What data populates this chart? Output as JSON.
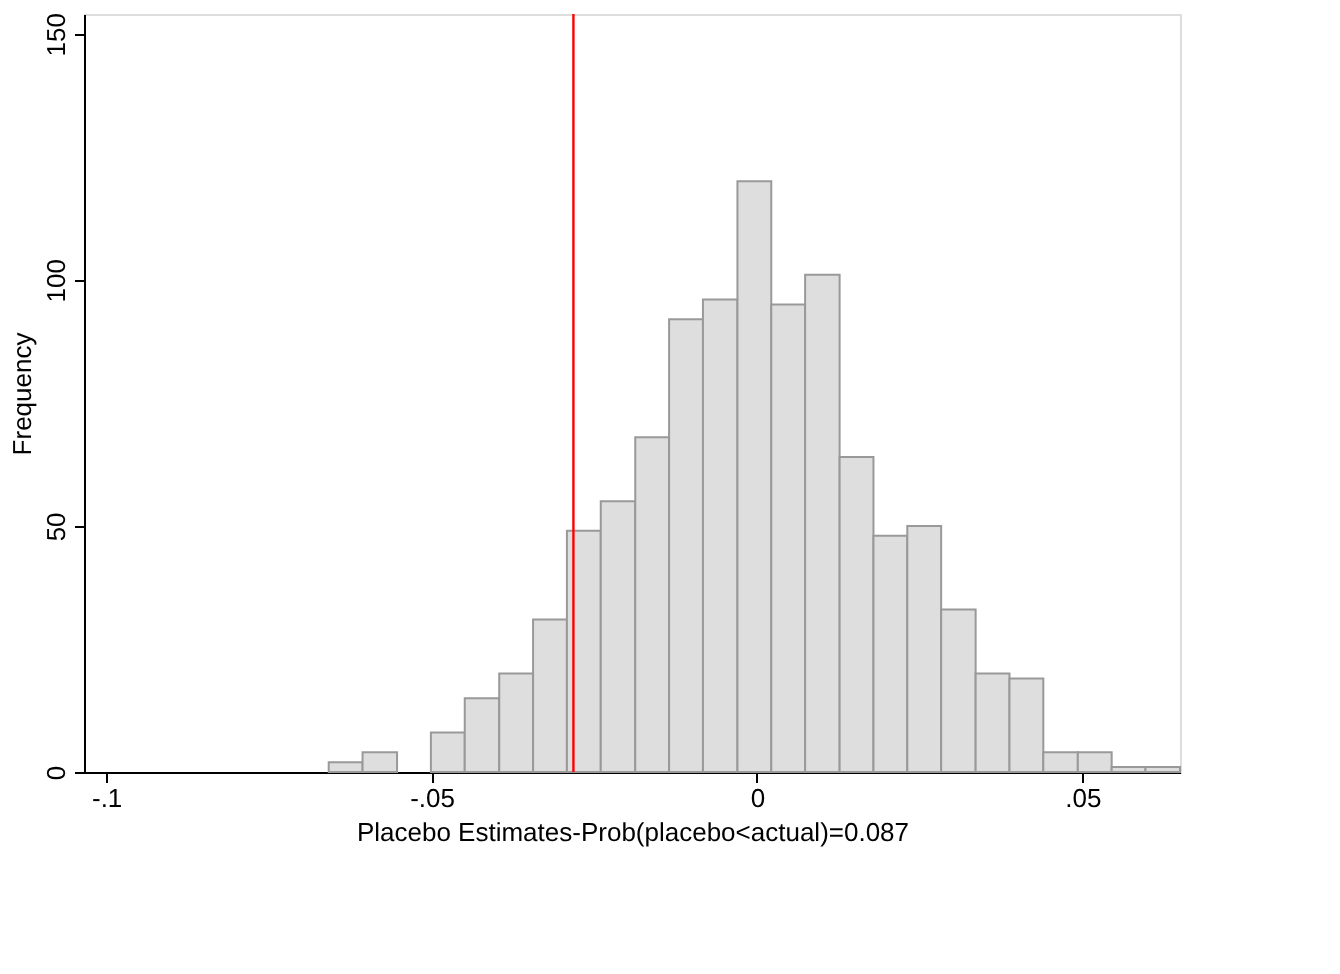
{
  "chart_data": {
    "type": "histogram",
    "xlabel": "Placebo Estimates-Prob(placebo<actual)=0.087",
    "ylabel": "Frequency",
    "bins": [
      -0.0658,
      -0.0606,
      -0.0553,
      -0.0501,
      -0.0449,
      -0.0396,
      -0.0344,
      -0.0292,
      -0.024,
      -0.0187,
      -0.0135,
      -0.0083,
      -0.003,
      0.0022,
      0.0074,
      0.0127,
      0.0179,
      0.0231,
      0.0283,
      0.0336,
      0.0388,
      0.044,
      0.0493,
      0.0545,
      0.0597,
      0.065
    ],
    "values": [
      2,
      4,
      0,
      8,
      15,
      20,
      31,
      49,
      55,
      68,
      92,
      96,
      120,
      95,
      101,
      64,
      48,
      50,
      33,
      20,
      19,
      4,
      4,
      1,
      1
    ],
    "color": "#dedede",
    "xlim": [
      -0.1034,
      0.065
    ],
    "xticks": [
      {
        "value": -0.1,
        "label": "-.1"
      },
      {
        "value": -0.05,
        "label": "-.05"
      },
      0,
      {
        "value": 0.05,
        "label": ".05"
      }
    ],
    "ylim": [
      0,
      154
    ],
    "yticks": [
      0,
      50,
      100,
      150
    ],
    "grid": false,
    "ref_lines": [
      {
        "axis": "x",
        "value": -0.0282,
        "color": "#ff0000"
      }
    ]
  }
}
